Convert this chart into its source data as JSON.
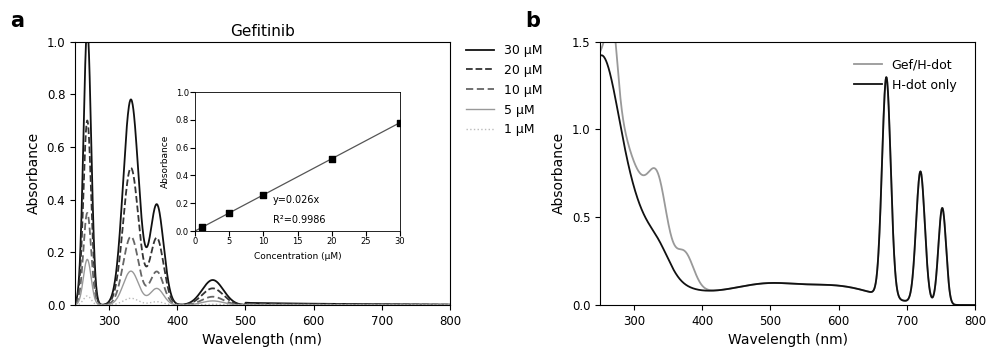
{
  "panel_a": {
    "title": "Gefitinib",
    "xlabel": "Wavelength (nm)",
    "ylabel": "Absorbance",
    "xlim": [
      250,
      800
    ],
    "ylim": [
      0.0,
      1.0
    ],
    "xticks": [
      300,
      400,
      500,
      600,
      700,
      800
    ],
    "yticks": [
      0.0,
      0.2,
      0.4,
      0.6,
      0.8,
      1.0
    ],
    "legend_labels": [
      "30 μM",
      "20 μM",
      "10 μM",
      "5 μM",
      "1 μM"
    ],
    "legend_colors": [
      "#111111",
      "#333333",
      "#666666",
      "#999999",
      "#bbbbbb"
    ],
    "inset": {
      "xlabel": "Concentration (μM)",
      "ylabel": "Absorbance",
      "xlim": [
        0,
        30
      ],
      "ylim": [
        0.0,
        1.0
      ],
      "xticks": [
        0,
        5,
        10,
        15,
        20,
        25,
        30
      ],
      "yticks": [
        0.0,
        0.2,
        0.4,
        0.6,
        0.8,
        1.0
      ],
      "equation": "y=0.026x",
      "r2": "R²=0.9986",
      "scatter_x": [
        1,
        5,
        10,
        20,
        30
      ],
      "scatter_y": [
        0.026,
        0.13,
        0.26,
        0.52,
        0.78
      ],
      "line_x": [
        0,
        30
      ],
      "line_y": [
        0.0,
        0.78
      ]
    }
  },
  "panel_b": {
    "xlabel": "Wavelength (nm)",
    "ylabel": "Absorbance",
    "xlim": [
      250,
      800
    ],
    "ylim": [
      0.0,
      1.5
    ],
    "xticks": [
      300,
      400,
      500,
      600,
      700,
      800
    ],
    "yticks": [
      0.0,
      0.5,
      1.0,
      1.5
    ],
    "legend_labels": [
      "Gef/H-dot",
      "H-dot only"
    ],
    "legend_colors": [
      "#999999",
      "#111111"
    ]
  }
}
